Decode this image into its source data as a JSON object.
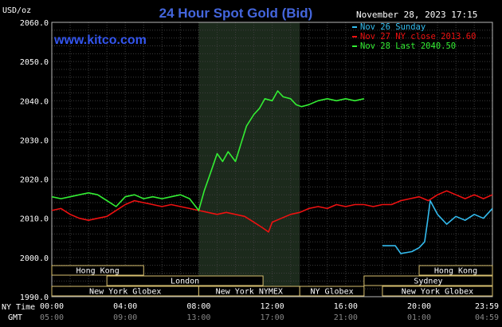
{
  "chart_data": {
    "type": "line",
    "title": "24 Hour Spot Gold (Bid)",
    "source": "www.kitco.com",
    "ylabel": "USD/oz",
    "timestamp": "November 28, 2023 17:15",
    "ylim": [
      1990,
      2060
    ],
    "yticks": [
      "2060.0",
      "2050.0",
      "2040.0",
      "2030.0",
      "2020.0",
      "2010.0",
      "2000.0",
      "1990.0"
    ],
    "x_label_ny": "NY Time",
    "x_label_gmt": "GMT",
    "x_ticks_ny": [
      "00:00",
      "04:00",
      "08:00",
      "12:00",
      "16:00",
      "20:00",
      "23:59"
    ],
    "x_ticks_gmt": [
      "05:00",
      "09:00",
      "13:00",
      "17:00",
      "21:00",
      "01:00",
      "04:59"
    ],
    "grid": true,
    "legend_position": "top-right",
    "series": [
      {
        "name": "Nov 26 Sunday",
        "color": "#33bbee",
        "x": [
          18.0,
          18.7,
          19.0,
          19.6,
          20.0,
          20.3,
          20.45,
          20.6,
          21.0,
          21.5,
          22.0,
          22.5,
          23.0,
          23.5,
          23.99
        ],
        "y": [
          2003.0,
          2003.0,
          2001.0,
          2001.5,
          2002.5,
          2004.0,
          2009.0,
          2014.5,
          2011.0,
          2008.5,
          2010.5,
          2009.5,
          2011.0,
          2010.0,
          2012.5
        ]
      },
      {
        "name": "Nov 27 NY close 2013.60",
        "color": "#ee1111",
        "x": [
          0.0,
          0.5,
          1.0,
          1.5,
          2.0,
          2.5,
          3.0,
          3.5,
          4.0,
          4.5,
          5.0,
          5.5,
          6.0,
          6.5,
          7.0,
          7.5,
          8.0,
          8.5,
          9.0,
          9.5,
          10.0,
          10.5,
          11.0,
          11.5,
          11.8,
          12.0,
          12.5,
          13.0,
          13.5,
          14.0,
          14.5,
          15.0,
          15.5,
          16.0,
          16.5,
          17.0,
          17.5,
          18.0,
          18.5,
          19.0,
          19.5,
          20.0,
          20.5,
          21.0,
          21.5,
          22.0,
          22.5,
          23.0,
          23.5,
          23.99
        ],
        "y": [
          2012.0,
          2012.5,
          2011.0,
          2010.0,
          2009.5,
          2010.0,
          2010.5,
          2012.0,
          2013.5,
          2014.5,
          2014.0,
          2013.5,
          2013.0,
          2013.5,
          2013.0,
          2012.5,
          2012.0,
          2011.5,
          2011.0,
          2011.5,
          2011.0,
          2010.5,
          2009.0,
          2007.5,
          2006.5,
          2009.0,
          2010.0,
          2011.0,
          2011.5,
          2012.5,
          2013.0,
          2012.5,
          2013.5,
          2013.0,
          2013.5,
          2013.5,
          2013.0,
          2013.5,
          2013.5,
          2014.5,
          2015.0,
          2015.5,
          2014.5,
          2016.0,
          2017.0,
          2016.0,
          2015.0,
          2016.0,
          2015.0,
          2016.0
        ]
      },
      {
        "name": "Nov 28 Last 2040.50",
        "color": "#33ee33",
        "x": [
          0.0,
          0.5,
          1.0,
          1.5,
          2.0,
          2.5,
          3.0,
          3.5,
          4.0,
          4.5,
          5.0,
          5.5,
          6.0,
          6.5,
          7.0,
          7.5,
          8.0,
          8.3,
          8.6,
          9.0,
          9.3,
          9.6,
          10.0,
          10.3,
          10.6,
          11.0,
          11.3,
          11.6,
          12.0,
          12.3,
          12.6,
          13.0,
          13.3,
          13.6,
          14.0,
          14.5,
          15.0,
          15.5,
          16.0,
          16.5,
          17.0
        ],
        "y": [
          2015.5,
          2015.0,
          2015.5,
          2016.0,
          2016.5,
          2016.0,
          2014.5,
          2013.0,
          2015.5,
          2016.0,
          2015.0,
          2015.5,
          2015.0,
          2015.5,
          2016.0,
          2015.0,
          2012.0,
          2017.0,
          2021.0,
          2026.5,
          2024.5,
          2027.0,
          2024.5,
          2029.0,
          2033.5,
          2036.5,
          2038.0,
          2040.5,
          2040.0,
          2042.5,
          2041.0,
          2040.5,
          2039.0,
          2038.5,
          2039.0,
          2040.0,
          2040.5,
          2040.0,
          2040.5,
          2040.0,
          2040.5
        ]
      }
    ],
    "highlight_range": [
      8.0,
      13.5
    ],
    "sessions": [
      {
        "label": "Hong Kong",
        "start": 0.0,
        "end": 5.0,
        "row": 0
      },
      {
        "label": "Hong Kong",
        "start": 20.0,
        "end": 23.99,
        "row": 0
      },
      {
        "label": "London",
        "start": 3.0,
        "end": 11.5,
        "row": 1
      },
      {
        "label": "Sydney",
        "start": 17.0,
        "end": 23.99,
        "row": 1
      },
      {
        "label": "New York Globex",
        "start": 0.0,
        "end": 8.0,
        "row": 2
      },
      {
        "label": "New York NYMEX",
        "start": 8.0,
        "end": 13.5,
        "row": 2
      },
      {
        "label": "NY Globex",
        "start": 13.5,
        "end": 17.0,
        "row": 2
      },
      {
        "label": "New York Globex",
        "start": 18.0,
        "end": 23.99,
        "row": 2
      }
    ]
  }
}
